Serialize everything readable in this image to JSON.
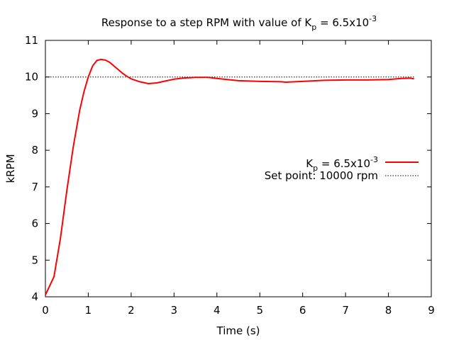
{
  "chart_data": {
    "type": "line",
    "title": {
      "prefix": "Response to a step RPM with value of K",
      "sub": "p",
      "mid": " = 6.5x10",
      "sup": "-3"
    },
    "xlabel": "Time (s)",
    "ylabel": "kRPM",
    "xlim": [
      0,
      9
    ],
    "ylim": [
      4,
      11
    ],
    "xticks": [
      0,
      1,
      2,
      3,
      4,
      5,
      6,
      7,
      8,
      9
    ],
    "yticks": [
      4,
      5,
      6,
      7,
      8,
      9,
      10,
      11
    ],
    "grid": false,
    "legend_position": "right",
    "series": [
      {
        "legend": {
          "base": "K",
          "sub": "p",
          "mid": " = 6.5x10",
          "sup": "-3"
        },
        "color": "#ff0000",
        "style": "solid",
        "x": [
          0,
          0.2,
          0.35,
          0.5,
          0.65,
          0.8,
          0.9,
          1.0,
          1.1,
          1.2,
          1.3,
          1.4,
          1.5,
          1.6,
          1.7,
          1.8,
          1.9,
          2.0,
          2.2,
          2.4,
          2.6,
          2.8,
          3.0,
          3.2,
          3.5,
          3.8,
          4.0,
          4.5,
          5.0,
          5.5,
          5.6,
          6.0,
          6.5,
          7.0,
          7.5,
          8.0,
          8.3,
          8.5,
          8.6
        ],
        "y": [
          4.05,
          4.55,
          5.6,
          6.9,
          8.1,
          9.1,
          9.6,
          10.0,
          10.3,
          10.45,
          10.48,
          10.46,
          10.4,
          10.3,
          10.2,
          10.1,
          10.02,
          9.95,
          9.87,
          9.82,
          9.84,
          9.89,
          9.94,
          9.97,
          9.99,
          9.99,
          9.96,
          9.9,
          9.88,
          9.87,
          9.86,
          9.88,
          9.91,
          9.92,
          9.92,
          9.93,
          9.96,
          9.97,
          9.95
        ]
      },
      {
        "legend": {
          "base": "Set point: 10000 rpm"
        },
        "color": "#000000",
        "style": "dotted",
        "x": [
          0,
          8.6
        ],
        "y": [
          10,
          10
        ]
      }
    ]
  }
}
